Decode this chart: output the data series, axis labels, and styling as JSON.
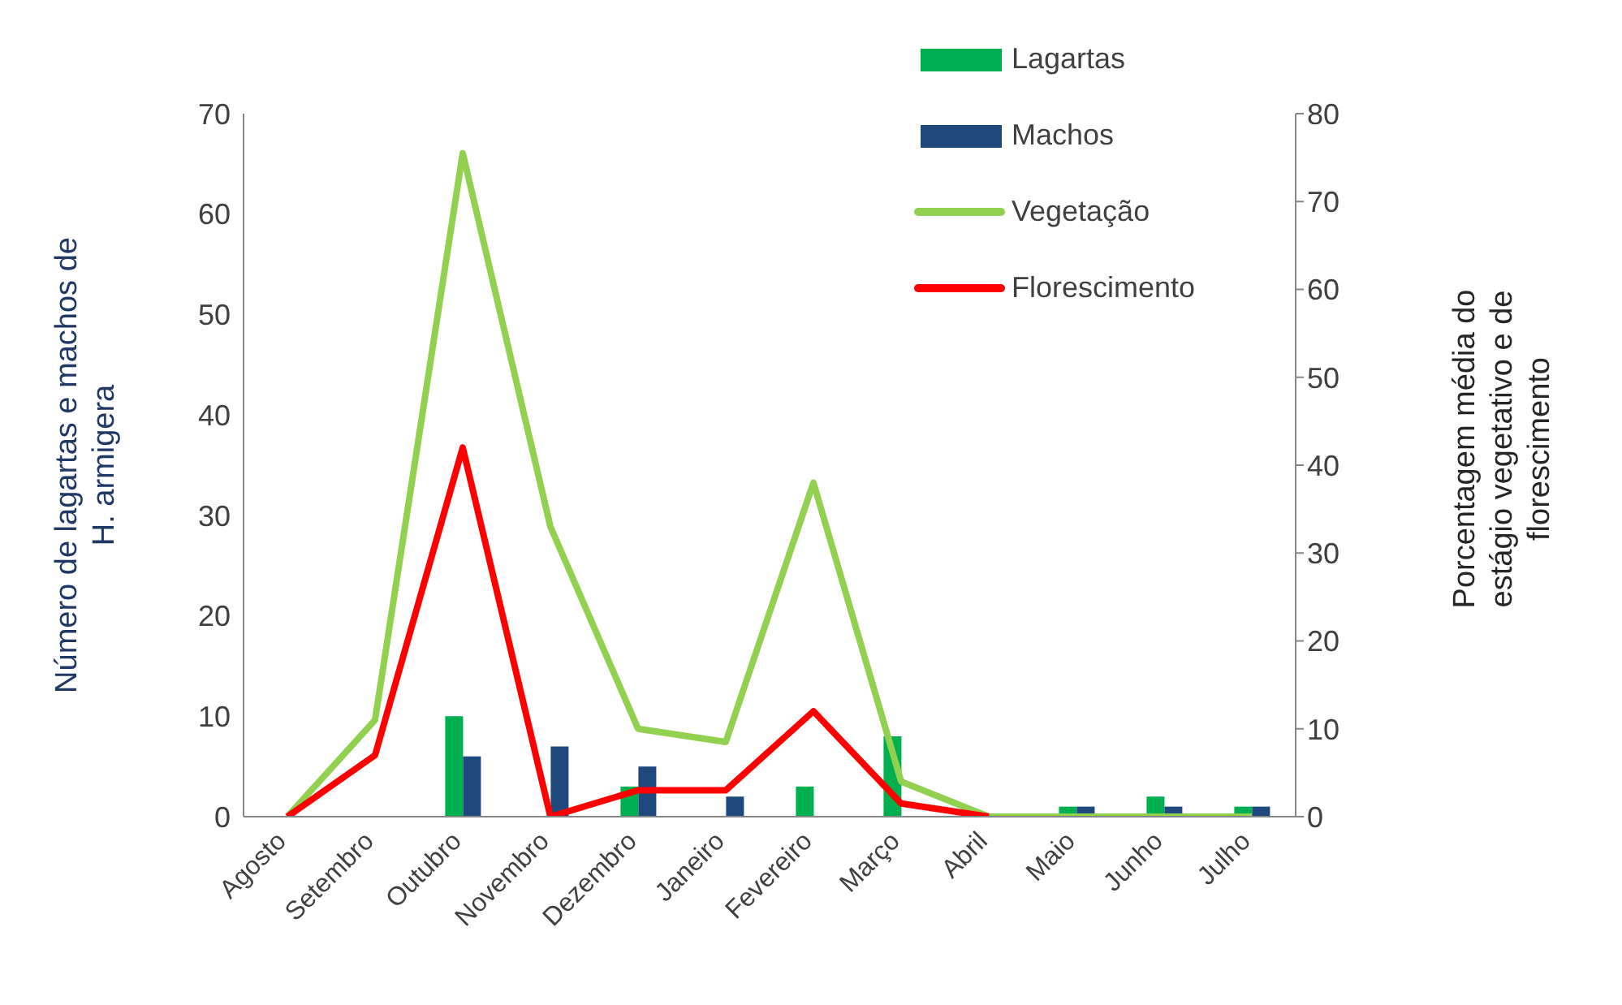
{
  "chart_data": {
    "type": "bar",
    "ylabel": "Número de lagartas e machos de H. armigera",
    "y2label": "Porcentagem média do estágio vegetativo e de florescimento",
    "categories": [
      "Agosto",
      "Setembro",
      "Outubro",
      "Novembro",
      "Dezembro",
      "Janeiro",
      "Fevereiro",
      "Março",
      "Abril",
      "Maio",
      "Junho",
      "Julho"
    ],
    "series": [
      {
        "name": "Lagartas",
        "color": "#00b050",
        "values": [
          0,
          0,
          10,
          0,
          3,
          0,
          3,
          8,
          0,
          1,
          2,
          1
        ]
      },
      {
        "name": "Machos",
        "color": "#1f497d",
        "values": [
          0,
          0,
          6,
          7,
          5,
          2,
          0,
          0,
          0,
          1,
          1,
          1
        ]
      },
      {
        "name": "Vegetação",
        "type": "line",
        "axis": "y2",
        "color": "#92d050",
        "values": [
          0,
          11,
          75.5,
          33,
          10,
          8.5,
          38,
          4,
          0,
          0,
          0,
          0
        ]
      },
      {
        "name": "Florescimento",
        "type": "line",
        "axis": "y2",
        "color": "#ff0000",
        "values": [
          0,
          7,
          42,
          0,
          3,
          3,
          12,
          1.5,
          0,
          null,
          null,
          null
        ]
      }
    ],
    "ylim": [
      0,
      70
    ],
    "yticks": [
      0,
      10,
      20,
      30,
      40,
      50,
      60,
      70
    ],
    "y2lim": [
      0,
      80
    ],
    "y2ticks": [
      0,
      10,
      20,
      30,
      40,
      50,
      60,
      70,
      80
    ],
    "grid": false,
    "legend": "top right",
    "marker": "none",
    "line_style": "solid"
  }
}
